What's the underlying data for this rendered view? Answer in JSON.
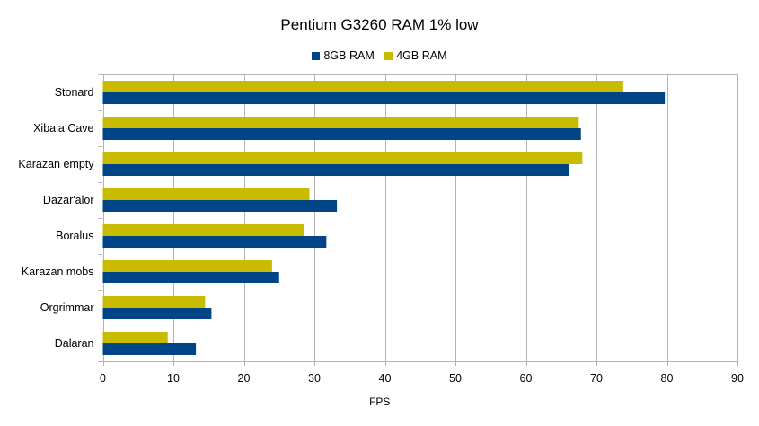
{
  "chart_data": {
    "type": "bar",
    "orientation": "horizontal",
    "title": "Pentium G3260 RAM 1% low",
    "xlabel": "FPS",
    "ylabel": "",
    "xlim": [
      0,
      90
    ],
    "x_ticks": [
      0,
      10,
      20,
      30,
      40,
      50,
      60,
      70,
      80,
      90
    ],
    "grid": true,
    "legend_position": "top",
    "categories": [
      "Stonard",
      "Xibala Cave",
      "Karazan empty",
      "Dazar'alor",
      "Boralus",
      "Karazan mobs",
      "Orgrimmar",
      "Dalaran"
    ],
    "series": [
      {
        "name": "8GB RAM",
        "color": "#004586",
        "values": [
          79.7,
          67.8,
          66.1,
          33.2,
          31.7,
          25.0,
          15.4,
          13.2
        ]
      },
      {
        "name": "4GB RAM",
        "color": "#c9bb00",
        "values": [
          73.8,
          67.5,
          68.0,
          29.3,
          28.6,
          24.0,
          14.5,
          9.2
        ]
      }
    ]
  }
}
